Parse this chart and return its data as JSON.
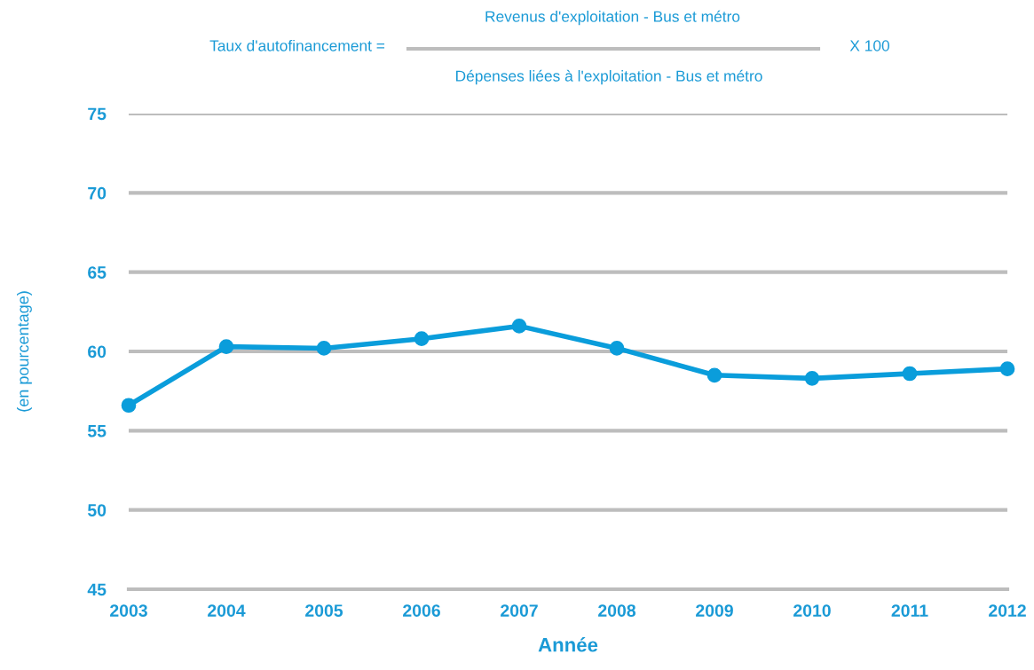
{
  "chart_data": {
    "type": "line",
    "annotations": [
      "Taux d'autofinancement =",
      "Revenus d'exploitation - Bus et métro",
      "Dépenses liées à l'exploitation - Bus et métro",
      "X 100"
    ],
    "xlabel": "Année",
    "ylabel": "(en pourcentage)",
    "x": [
      2003,
      2004,
      2005,
      2006,
      2007,
      2008,
      2009,
      2010,
      2011,
      2012
    ],
    "series": [
      {
        "color": "#0a9ddb",
        "values": [
          56.6,
          60.3,
          60.2,
          60.8,
          61.6,
          60.2,
          58.5,
          58.3,
          58.6,
          58.9
        ]
      }
    ],
    "xlim": [
      2003,
      2012
    ],
    "xticks": [
      2003,
      2004,
      2005,
      2006,
      2007,
      2008,
      2009,
      2010,
      2011,
      2012
    ],
    "ylim": [
      45,
      75
    ],
    "yticks": [
      45,
      50,
      55,
      60,
      65,
      70,
      75
    ],
    "grid": "y",
    "marker": "circle",
    "line_style": "solid"
  }
}
